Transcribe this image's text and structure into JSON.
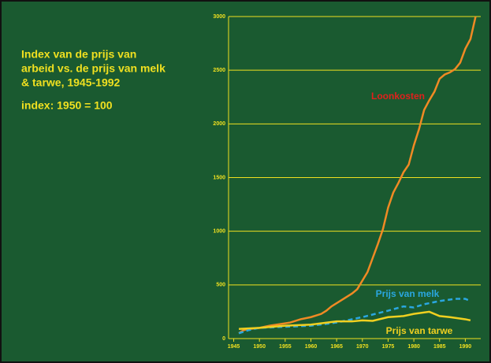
{
  "chart_data": {
    "type": "line",
    "title_lines": [
      "Index van de prijs van",
      "arbeid vs. de prijs van melk",
      "& tarwe, 1945-1992"
    ],
    "subtitle": "index: 1950 = 100",
    "xlim": [
      1944,
      1993
    ],
    "xticks": [
      1945,
      1950,
      1955,
      1960,
      1965,
      1970,
      1975,
      1980,
      1985,
      1990
    ],
    "ylim": [
      0,
      3000
    ],
    "yticks": [
      0,
      500,
      1000,
      1500,
      2000,
      2500,
      3000
    ],
    "grid": true,
    "series": [
      {
        "name": "Loonkosten",
        "color": "#f08a24",
        "dash": false,
        "x": [
          1946,
          1947,
          1948,
          1950,
          1952,
          1954,
          1956,
          1958,
          1960,
          1962,
          1963,
          1964,
          1966,
          1968,
          1969,
          1970,
          1971,
          1972,
          1973,
          1974,
          1975,
          1976,
          1977,
          1978,
          1979,
          1980,
          1981,
          1982,
          1983,
          1984,
          1985,
          1986,
          1987,
          1988,
          1989,
          1990,
          1991,
          1992
        ],
        "values": [
          50,
          80,
          90,
          100,
          120,
          135,
          150,
          180,
          200,
          230,
          260,
          300,
          360,
          420,
          460,
          540,
          620,
          750,
          880,
          1020,
          1220,
          1360,
          1450,
          1550,
          1620,
          1800,
          1950,
          2130,
          2220,
          2300,
          2420,
          2460,
          2480,
          2510,
          2570,
          2700,
          2790,
          3000
        ]
      },
      {
        "name": "Prijs van melk",
        "color": "#2aa7e0",
        "dash": true,
        "x": [
          1946,
          1948,
          1950,
          1955,
          1960,
          1965,
          1970,
          1975,
          1978,
          1980,
          1982,
          1985,
          1988,
          1990,
          1991
        ],
        "values": [
          50,
          80,
          100,
          110,
          120,
          150,
          200,
          260,
          300,
          290,
          320,
          350,
          370,
          370,
          350
        ]
      },
      {
        "name": "Prijs van tarwe",
        "color": "#f0d020",
        "dash": false,
        "x": [
          1946,
          1950,
          1955,
          1960,
          1965,
          1968,
          1970,
          1972,
          1975,
          1978,
          1980,
          1983,
          1985,
          1987,
          1990,
          1991
        ],
        "values": [
          90,
          100,
          120,
          130,
          160,
          160,
          170,
          165,
          200,
          210,
          230,
          250,
          210,
          200,
          180,
          170
        ]
      }
    ]
  }
}
